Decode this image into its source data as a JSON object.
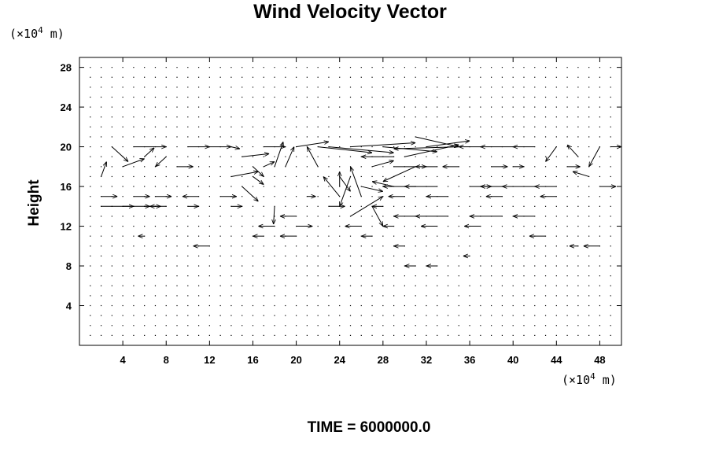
{
  "chart_data": {
    "type": "quiver",
    "title": "Wind Velocity Vector",
    "xlabel": "",
    "ylabel": "Height",
    "x_unit": {
      "prefix": "(×10",
      "exp": "4",
      "suffix": " m)"
    },
    "y_unit": {
      "prefix": "(×10",
      "exp": "4",
      "suffix": " m)"
    },
    "xlim": [
      0,
      50
    ],
    "ylim": [
      0,
      29
    ],
    "x_ticks": [
      "4",
      "8",
      "12",
      "16",
      "20",
      "24",
      "28",
      "32",
      "36",
      "40",
      "44",
      "48"
    ],
    "y_ticks": [
      "4",
      "8",
      "12",
      "16",
      "20",
      "24",
      "28"
    ],
    "grid": false,
    "footer": "TIME = 6000000.0",
    "vectors": [
      [
        3,
        20,
        1.5,
        -1.5
      ],
      [
        4,
        18,
        2,
        0.8
      ],
      [
        5,
        20,
        3,
        0
      ],
      [
        6,
        19,
        0.9,
        0.9
      ],
      [
        8,
        19,
        -1,
        -1
      ],
      [
        10,
        20,
        2,
        0
      ],
      [
        12,
        20,
        2,
        0
      ],
      [
        14,
        20,
        0.8,
        -0.2
      ],
      [
        17,
        20,
        2,
        0
      ],
      [
        19,
        18,
        0.8,
        2
      ],
      [
        20,
        20,
        3,
        0.5
      ],
      [
        22,
        20,
        5,
        -0.6
      ],
      [
        23,
        20,
        6,
        -0.6
      ],
      [
        25,
        20,
        6,
        0.4
      ],
      [
        28,
        20,
        5,
        -0.5
      ],
      [
        30,
        19,
        5,
        1.2
      ],
      [
        32,
        20,
        4,
        0.6
      ],
      [
        35,
        20,
        -6,
        -0.2
      ],
      [
        29,
        19,
        -3,
        0
      ],
      [
        31,
        18,
        -3,
        -1.5
      ],
      [
        31,
        21,
        4,
        -1
      ],
      [
        37,
        20,
        -2,
        0
      ],
      [
        40,
        20,
        -3,
        0
      ],
      [
        42,
        20,
        -2,
        0
      ],
      [
        44,
        20,
        -1,
        -1.5
      ],
      [
        46,
        19,
        -1,
        1.2
      ],
      [
        48,
        20,
        -1,
        -2
      ],
      [
        49,
        20,
        1,
        0
      ],
      [
        2,
        17,
        0.5,
        1.5
      ],
      [
        9,
        18,
        1.5,
        0
      ],
      [
        15,
        19,
        2.5,
        0.3
      ],
      [
        16,
        18,
        1,
        -1
      ],
      [
        17,
        18,
        1,
        0.5
      ],
      [
        18,
        18,
        0.8,
        2.5
      ],
      [
        22,
        18,
        -1,
        2
      ],
      [
        24,
        17,
        1,
        -1.5
      ],
      [
        25,
        17,
        -1,
        -3
      ],
      [
        27,
        18,
        2,
        0.6
      ],
      [
        29,
        18,
        3,
        0
      ],
      [
        33,
        18,
        -2,
        0
      ],
      [
        35,
        18,
        -1.5,
        0
      ],
      [
        38,
        18,
        1.5,
        0
      ],
      [
        40,
        18,
        1,
        0
      ],
      [
        45,
        18,
        1.2,
        0
      ],
      [
        47,
        17,
        -1.5,
        0.5
      ],
      [
        15,
        16,
        1.5,
        -1.5
      ],
      [
        14,
        17,
        2.5,
        0.5
      ],
      [
        16,
        17,
        1,
        -0.8
      ],
      [
        24,
        15,
        -1.5,
        2
      ],
      [
        24,
        16,
        0,
        1.5
      ],
      [
        26,
        15,
        -1,
        3
      ],
      [
        26,
        16,
        2,
        -0.5
      ],
      [
        29,
        16,
        -2,
        0.5
      ],
      [
        31,
        16,
        -3,
        0
      ],
      [
        33,
        16,
        -3,
        0
      ],
      [
        36,
        16,
        2,
        0
      ],
      [
        39,
        16,
        -2,
        0
      ],
      [
        42,
        16,
        -3,
        0
      ],
      [
        44,
        16,
        -2,
        0
      ],
      [
        48,
        16,
        1.5,
        0
      ],
      [
        2,
        14,
        3,
        0
      ],
      [
        4,
        14,
        2.5,
        0
      ],
      [
        6,
        14,
        1.5,
        0
      ],
      [
        8,
        14,
        -1.5,
        0
      ],
      [
        10,
        14,
        1,
        0
      ],
      [
        14,
        14,
        1,
        0
      ],
      [
        18,
        14,
        -0.1,
        -1.8
      ],
      [
        20,
        13,
        -1.5,
        0
      ],
      [
        23,
        14,
        1.5,
        0
      ],
      [
        25,
        13,
        3,
        2
      ],
      [
        27,
        14,
        1,
        -2
      ],
      [
        28,
        14,
        -1,
        0
      ],
      [
        31,
        13,
        -2,
        0
      ],
      [
        34,
        13,
        -3,
        0
      ],
      [
        39,
        13,
        -3,
        0
      ],
      [
        42,
        13,
        -2,
        0
      ],
      [
        2,
        15,
        1.5,
        0
      ],
      [
        5,
        15,
        1.5,
        0
      ],
      [
        7,
        15,
        1.5,
        0
      ],
      [
        11,
        15,
        -1.5,
        0
      ],
      [
        13,
        15,
        1.5,
        0
      ],
      [
        21,
        15,
        0.8,
        0
      ],
      [
        30,
        15,
        -1.5,
        0
      ],
      [
        34,
        15,
        -2,
        0
      ],
      [
        39,
        15,
        -1.5,
        0
      ],
      [
        44,
        15,
        -1.5,
        0
      ],
      [
        18,
        12,
        -1.5,
        0
      ],
      [
        20,
        12,
        1.5,
        0
      ],
      [
        26,
        12,
        -1.5,
        0
      ],
      [
        29,
        12,
        -1,
        0
      ],
      [
        33,
        12,
        -1.5,
        0
      ],
      [
        37,
        12,
        -1.5,
        0
      ],
      [
        12,
        10,
        -1.5,
        0
      ],
      [
        20,
        11,
        -1.5,
        0
      ],
      [
        43,
        11,
        -1.5,
        0
      ],
      [
        48,
        10,
        -1.5,
        0
      ],
      [
        17,
        11,
        -1,
        0
      ],
      [
        27,
        11,
        -1,
        0
      ],
      [
        30,
        10,
        -1,
        0
      ],
      [
        31,
        8,
        -1,
        0
      ],
      [
        33,
        8,
        -1,
        0
      ],
      [
        46,
        10,
        -0.8,
        0
      ],
      [
        36,
        9,
        -0.6,
        0
      ],
      [
        6,
        11,
        -0.6,
        0
      ]
    ]
  }
}
